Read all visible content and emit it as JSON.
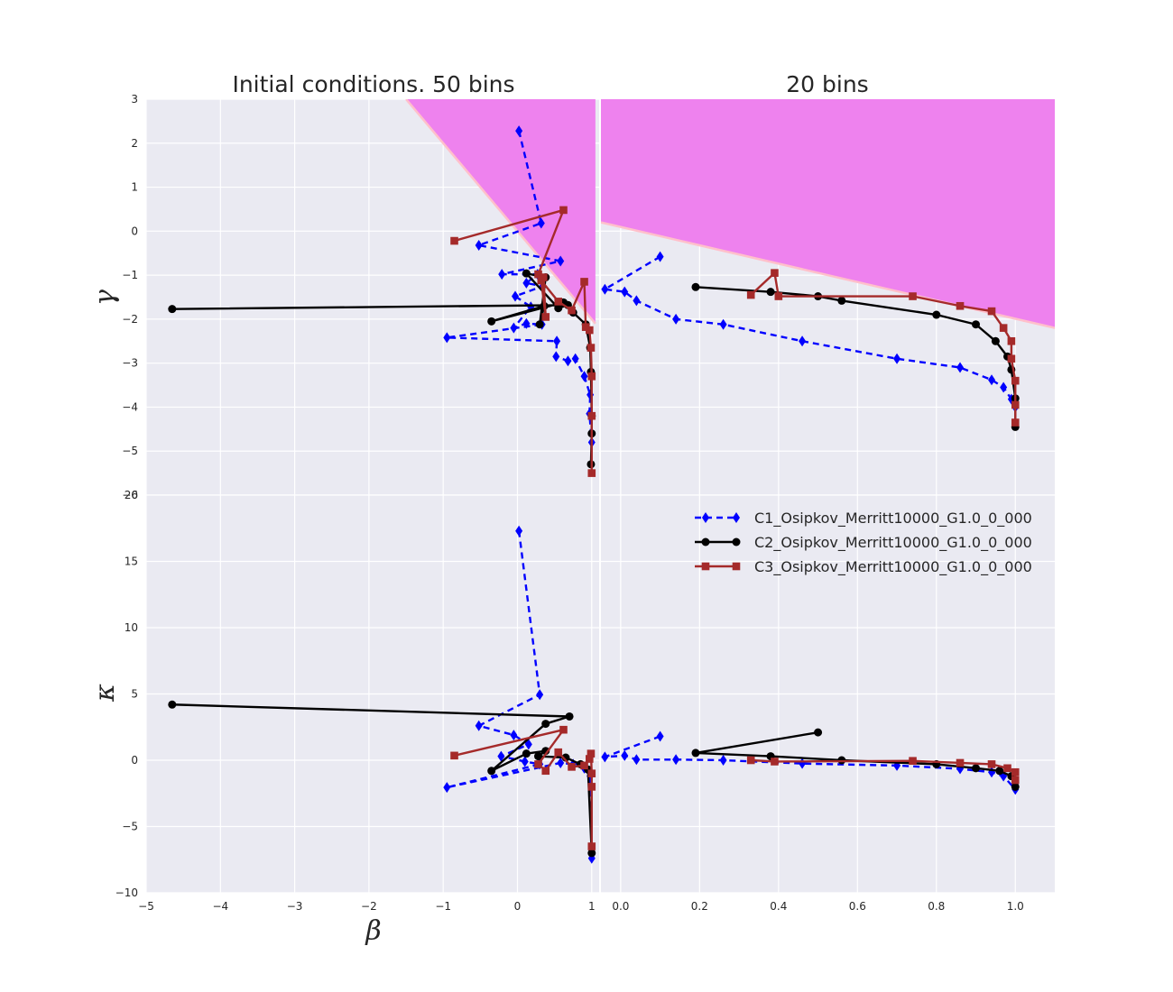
{
  "chart_data": [
    {
      "type": "line",
      "panel": "top-left",
      "title": "Initial conditions. 50 bins",
      "ylabel": "γ",
      "xlim": [
        -5,
        1.1
      ],
      "ylim": [
        -6,
        3
      ],
      "yticks": [
        "3",
        "2",
        "1",
        "0",
        "−1",
        "−2",
        "−3",
        "−4",
        "−5",
        "−6"
      ],
      "grid": true,
      "shaded_region": {
        "color": "#ee82ee",
        "edge": "#ffc0cb",
        "boundary": [
          [
            -1.5,
            3
          ],
          [
            1.05,
            -2.1
          ]
        ]
      },
      "series": [
        {
          "name": "C1_Osipkov_Merritt10000_G1.0_0_000",
          "color": "#0000ff",
          "marker": "diamond",
          "linestyle": "dashed",
          "points": [
            [
              0.02,
              2.28
            ],
            [
              0.32,
              0.18
            ],
            [
              -0.52,
              -0.32
            ],
            [
              0.58,
              -0.68
            ],
            [
              -0.21,
              -0.98
            ],
            [
              0.27,
              -0.98
            ],
            [
              0.12,
              -1.18
            ],
            [
              0.34,
              -1.25
            ],
            [
              -0.03,
              -1.48
            ],
            [
              0.18,
              -1.72
            ],
            [
              -0.05,
              -2.2
            ],
            [
              0.12,
              -2.1
            ],
            [
              0.33,
              -2.12
            ],
            [
              -0.95,
              -2.42
            ],
            [
              0.53,
              -2.5
            ],
            [
              0.52,
              -2.85
            ],
            [
              0.68,
              -2.95
            ],
            [
              0.78,
              -2.9
            ],
            [
              0.9,
              -3.3
            ],
            [
              0.98,
              -3.72
            ],
            [
              0.97,
              -4.15
            ],
            [
              1.0,
              -4.8
            ]
          ]
        },
        {
          "name": "C2_Osipkov_Merritt10000_G1.0_0_000",
          "color": "#000000",
          "marker": "circle",
          "linestyle": "solid",
          "points": [
            [
              -4.65,
              -1.77
            ],
            [
              0.68,
              -1.68
            ],
            [
              0.55,
              -1.75
            ],
            [
              0.12,
              -0.96
            ],
            [
              0.38,
              -1.05
            ],
            [
              0.3,
              -2.12
            ],
            [
              0.36,
              -1.7
            ],
            [
              -0.35,
              -2.05
            ],
            [
              0.62,
              -1.62
            ],
            [
              0.75,
              -1.85
            ],
            [
              0.92,
              -2.12
            ],
            [
              0.98,
              -2.65
            ],
            [
              0.99,
              -3.2
            ],
            [
              1.0,
              -4.2
            ],
            [
              1.0,
              -4.6
            ],
            [
              0.99,
              -5.3
            ]
          ]
        },
        {
          "name": "C3_Osipkov_Merritt10000_G1.0_0_000",
          "color": "#a52a2a",
          "marker": "square",
          "linestyle": "solid",
          "points": [
            [
              -0.85,
              -0.22
            ],
            [
              0.62,
              0.48
            ],
            [
              0.28,
              -0.98
            ],
            [
              0.35,
              -1.05
            ],
            [
              0.38,
              -1.95
            ],
            [
              0.32,
              -1.12
            ],
            [
              0.55,
              -1.6
            ],
            [
              0.73,
              -1.8
            ],
            [
              0.9,
              -1.15
            ],
            [
              0.92,
              -2.18
            ],
            [
              0.97,
              -2.25
            ],
            [
              0.99,
              -2.65
            ],
            [
              1.0,
              -3.3
            ],
            [
              1.0,
              -4.2
            ],
            [
              1.0,
              -5.5
            ]
          ]
        }
      ]
    },
    {
      "type": "line",
      "panel": "top-right",
      "title": "20 bins",
      "xlim": [
        -0.05,
        1.1
      ],
      "ylim": [
        -6,
        3
      ],
      "grid": true,
      "shaded_region": {
        "color": "#ee82ee",
        "edge": "#ffc0cb",
        "boundary": [
          [
            -0.05,
            0.2
          ],
          [
            1.1,
            -2.2
          ]
        ]
      },
      "series": [
        {
          "name": "C1_Osipkov_Merritt10000_G1.0_0_000",
          "color": "#0000ff",
          "marker": "diamond",
          "linestyle": "dashed",
          "points": [
            [
              0.1,
              -0.58
            ],
            [
              -0.04,
              -1.32
            ],
            [
              0.01,
              -1.38
            ],
            [
              0.04,
              -1.58
            ],
            [
              0.14,
              -2.0
            ],
            [
              0.26,
              -2.12
            ],
            [
              0.46,
              -2.5
            ],
            [
              0.7,
              -2.9
            ],
            [
              0.86,
              -3.1
            ],
            [
              0.94,
              -3.38
            ],
            [
              0.97,
              -3.55
            ],
            [
              0.99,
              -3.82
            ],
            [
              1.0,
              -4.0
            ]
          ]
        },
        {
          "name": "C2_Osipkov_Merritt10000_G1.0_0_000",
          "color": "#000000",
          "marker": "circle",
          "linestyle": "solid",
          "points": [
            [
              0.19,
              -1.27
            ],
            [
              0.38,
              -1.38
            ],
            [
              0.5,
              -1.48
            ],
            [
              0.56,
              -1.58
            ],
            [
              0.8,
              -1.9
            ],
            [
              0.9,
              -2.12
            ],
            [
              0.95,
              -2.5
            ],
            [
              0.98,
              -2.85
            ],
            [
              0.99,
              -3.15
            ],
            [
              1.0,
              -3.8
            ],
            [
              1.0,
              -4.45
            ]
          ]
        },
        {
          "name": "C3_Osipkov_Merritt10000_G1.0_0_000",
          "color": "#a52a2a",
          "marker": "square",
          "linestyle": "solid",
          "points": [
            [
              0.33,
              -1.45
            ],
            [
              0.39,
              -0.95
            ],
            [
              0.4,
              -1.48
            ],
            [
              0.74,
              -1.48
            ],
            [
              0.86,
              -1.7
            ],
            [
              0.94,
              -1.82
            ],
            [
              0.97,
              -2.2
            ],
            [
              0.99,
              -2.5
            ],
            [
              0.99,
              -2.9
            ],
            [
              1.0,
              -3.4
            ],
            [
              1.0,
              -3.95
            ],
            [
              1.0,
              -4.35
            ]
          ]
        }
      ]
    },
    {
      "type": "line",
      "panel": "bottom-left",
      "ylabel": "κ",
      "xlabel": "β",
      "xlim": [
        -5,
        1.1
      ],
      "ylim": [
        -10,
        20
      ],
      "xticks": [
        "−5",
        "−4",
        "−3",
        "−2",
        "−1",
        "0",
        "1"
      ],
      "yticks": [
        "20",
        "15",
        "10",
        "5",
        "0",
        "−5",
        "−10"
      ],
      "grid": true,
      "series": [
        {
          "name": "C1_Osipkov_Merritt10000_G1.0_0_000",
          "color": "#0000ff",
          "marker": "diamond",
          "linestyle": "dashed",
          "points": [
            [
              0.02,
              17.3
            ],
            [
              0.3,
              4.95
            ],
            [
              -0.52,
              2.6
            ],
            [
              -0.05,
              1.9
            ],
            [
              0.15,
              1.2
            ],
            [
              -0.22,
              0.3
            ],
            [
              0.1,
              -0.1
            ],
            [
              0.3,
              -0.3
            ],
            [
              -0.95,
              -2.05
            ],
            [
              0.58,
              -0.2
            ],
            [
              0.75,
              -0.3
            ],
            [
              0.9,
              -0.6
            ],
            [
              0.98,
              -1.2
            ],
            [
              1.0,
              -7.4
            ]
          ]
        },
        {
          "name": "C2_Osipkov_Merritt10000_G1.0_0_000",
          "color": "#000000",
          "marker": "circle",
          "linestyle": "solid",
          "points": [
            [
              -4.65,
              4.2
            ],
            [
              0.7,
              3.3
            ],
            [
              0.38,
              2.75
            ],
            [
              -0.35,
              -0.8
            ],
            [
              0.12,
              0.5
            ],
            [
              0.38,
              0.7
            ],
            [
              0.28,
              0.3
            ],
            [
              0.65,
              0.2
            ],
            [
              0.85,
              -0.3
            ],
            [
              0.95,
              -0.7
            ],
            [
              1.0,
              -7.0
            ]
          ]
        },
        {
          "name": "C3_Osipkov_Merritt10000_G1.0_0_000",
          "color": "#a52a2a",
          "marker": "square",
          "linestyle": "solid",
          "points": [
            [
              -0.85,
              0.35
            ],
            [
              0.62,
              2.3
            ],
            [
              0.28,
              -0.3
            ],
            [
              0.38,
              -0.8
            ],
            [
              0.55,
              0.6
            ],
            [
              0.73,
              -0.5
            ],
            [
              0.9,
              -0.4
            ],
            [
              0.97,
              0.1
            ],
            [
              0.99,
              0.5
            ],
            [
              1.0,
              -1.0
            ],
            [
              1.0,
              -2.0
            ],
            [
              1.0,
              -6.5
            ]
          ]
        }
      ]
    },
    {
      "type": "line",
      "panel": "bottom-right",
      "xlim": [
        -0.05,
        1.1
      ],
      "ylim": [
        -10,
        20
      ],
      "xticks": [
        "0.0",
        "0.2",
        "0.4",
        "0.6",
        "0.8",
        "1.0"
      ],
      "grid": true,
      "legend": "top-right",
      "series": [
        {
          "name": "C1_Osipkov_Merritt10000_G1.0_0_000",
          "color": "#0000ff",
          "marker": "diamond",
          "linestyle": "dashed",
          "points": [
            [
              0.1,
              1.8
            ],
            [
              -0.04,
              0.25
            ],
            [
              0.01,
              0.35
            ],
            [
              0.04,
              0.05
            ],
            [
              0.14,
              0.05
            ],
            [
              0.26,
              0.0
            ],
            [
              0.46,
              -0.25
            ],
            [
              0.7,
              -0.4
            ],
            [
              0.86,
              -0.65
            ],
            [
              0.94,
              -0.9
            ],
            [
              0.97,
              -1.2
            ],
            [
              1.0,
              -2.2
            ]
          ]
        },
        {
          "name": "C2_Osipkov_Merritt10000_G1.0_0_000",
          "color": "#000000",
          "marker": "circle",
          "linestyle": "solid",
          "points": [
            [
              0.5,
              2.1
            ],
            [
              0.19,
              0.55
            ],
            [
              0.38,
              0.3
            ],
            [
              0.56,
              0.0
            ],
            [
              0.8,
              -0.3
            ],
            [
              0.9,
              -0.6
            ],
            [
              0.96,
              -0.8
            ],
            [
              0.99,
              -1.2
            ],
            [
              1.0,
              -2.0
            ]
          ]
        },
        {
          "name": "C3_Osipkov_Merritt10000_G1.0_0_000",
          "color": "#a52a2a",
          "marker": "square",
          "linestyle": "solid",
          "points": [
            [
              0.33,
              0.0
            ],
            [
              0.39,
              -0.1
            ],
            [
              0.74,
              -0.05
            ],
            [
              0.86,
              -0.2
            ],
            [
              0.94,
              -0.3
            ],
            [
              0.98,
              -0.6
            ],
            [
              1.0,
              -0.9
            ],
            [
              1.0,
              -1.5
            ]
          ]
        }
      ]
    }
  ]
}
